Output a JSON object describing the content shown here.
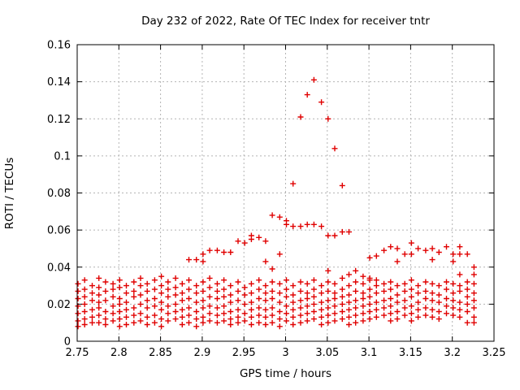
{
  "chart_data": {
    "type": "scatter",
    "title": "Day 232 of 2022, Rate Of TEC Index for receiver tntr",
    "xlabel": "GPS time / hours",
    "ylabel": "ROTI / TECUs",
    "xlim": [
      2.75,
      3.25
    ],
    "ylim": [
      0,
      0.16
    ],
    "xticks": [
      2.75,
      2.8,
      2.85,
      2.9,
      2.95,
      3,
      3.05,
      3.1,
      3.15,
      3.2,
      3.25
    ],
    "xtick_labels": [
      "2.75",
      "2.8",
      "2.85",
      "2.9",
      "2.95",
      "3",
      "3.05",
      "3.1",
      "3.15",
      "3.2",
      "3.25"
    ],
    "yticks": [
      0,
      0.02,
      0.04,
      0.06,
      0.08,
      0.1,
      0.12,
      0.14,
      0.16
    ],
    "ytick_labels": [
      "0",
      "0.02",
      "0.04",
      "0.06",
      "0.08",
      "0.1",
      "0.12",
      "0.14",
      "0.16"
    ],
    "grid": true,
    "legend": "none",
    "marker": "plus",
    "point_color": "#e00000",
    "grid_color": "#b4b4b4",
    "axis_color": "#000000",
    "series_by_epoch": [
      [
        2.751,
        [
          0.031,
          0.027,
          0.023,
          0.019,
          0.015,
          0.011,
          0.008
        ]
      ],
      [
        2.759,
        [
          0.033,
          0.028,
          0.024,
          0.02,
          0.016,
          0.012,
          0.009
        ]
      ],
      [
        2.768,
        [
          0.03,
          0.026,
          0.022,
          0.017,
          0.013,
          0.01
        ]
      ],
      [
        2.776,
        [
          0.034,
          0.029,
          0.025,
          0.021,
          0.018,
          0.014,
          0.01
        ]
      ],
      [
        2.784,
        [
          0.032,
          0.027,
          0.022,
          0.016,
          0.012,
          0.009
        ]
      ],
      [
        2.793,
        [
          0.031,
          0.028,
          0.024,
          0.019,
          0.015,
          0.011
        ]
      ],
      [
        2.801,
        [
          0.033,
          0.029,
          0.023,
          0.02,
          0.016,
          0.012,
          0.008
        ]
      ],
      [
        2.809,
        [
          0.03,
          0.026,
          0.021,
          0.017,
          0.013,
          0.009
        ]
      ],
      [
        2.818,
        [
          0.032,
          0.027,
          0.024,
          0.018,
          0.014,
          0.01
        ]
      ],
      [
        2.826,
        [
          0.034,
          0.03,
          0.025,
          0.02,
          0.015,
          0.011
        ]
      ],
      [
        2.834,
        [
          0.031,
          0.027,
          0.022,
          0.018,
          0.013,
          0.009
        ]
      ],
      [
        2.843,
        [
          0.033,
          0.028,
          0.023,
          0.019,
          0.014,
          0.01
        ]
      ],
      [
        2.851,
        [
          0.035,
          0.03,
          0.026,
          0.021,
          0.017,
          0.012,
          0.008
        ]
      ],
      [
        2.859,
        [
          0.032,
          0.028,
          0.024,
          0.019,
          0.015,
          0.011
        ]
      ],
      [
        2.868,
        [
          0.034,
          0.029,
          0.025,
          0.02,
          0.016,
          0.012
        ]
      ],
      [
        2.876,
        [
          0.031,
          0.026,
          0.022,
          0.017,
          0.013,
          0.009
        ]
      ],
      [
        2.884,
        [
          0.044,
          0.033,
          0.028,
          0.023,
          0.018,
          0.014,
          0.01
        ]
      ],
      [
        2.893,
        [
          0.044,
          0.03,
          0.026,
          0.021,
          0.016,
          0.012,
          0.008
        ]
      ],
      [
        2.901,
        [
          0.047,
          0.043,
          0.032,
          0.027,
          0.022,
          0.018,
          0.013,
          0.01
        ]
      ],
      [
        2.909,
        [
          0.049,
          0.034,
          0.029,
          0.024,
          0.019,
          0.015,
          0.011
        ]
      ],
      [
        2.918,
        [
          0.049,
          0.031,
          0.027,
          0.023,
          0.018,
          0.014,
          0.01
        ]
      ],
      [
        2.926,
        [
          0.048,
          0.033,
          0.028,
          0.024,
          0.019,
          0.015,
          0.011
        ]
      ],
      [
        2.934,
        [
          0.048,
          0.03,
          0.025,
          0.021,
          0.016,
          0.012,
          0.009
        ]
      ],
      [
        2.943,
        [
          0.054,
          0.032,
          0.027,
          0.022,
          0.017,
          0.013,
          0.01
        ]
      ],
      [
        2.951,
        [
          0.053,
          0.029,
          0.025,
          0.02,
          0.015,
          0.011
        ]
      ],
      [
        2.959,
        [
          0.057,
          0.055,
          0.031,
          0.026,
          0.021,
          0.017,
          0.013,
          0.009
        ]
      ],
      [
        2.968,
        [
          0.056,
          0.033,
          0.028,
          0.023,
          0.018,
          0.014,
          0.01
        ]
      ],
      [
        2.976,
        [
          0.054,
          0.043,
          0.03,
          0.026,
          0.022,
          0.017,
          0.013,
          0.009
        ]
      ],
      [
        2.984,
        [
          0.068,
          0.039,
          0.032,
          0.027,
          0.023,
          0.018,
          0.014,
          0.01
        ]
      ],
      [
        2.993,
        [
          0.067,
          0.047,
          0.031,
          0.026,
          0.021,
          0.016,
          0.012,
          0.008
        ]
      ],
      [
        3.001,
        [
          0.065,
          0.063,
          0.033,
          0.028,
          0.024,
          0.019,
          0.015,
          0.011
        ]
      ],
      [
        3.009,
        [
          0.085,
          0.062,
          0.03,
          0.025,
          0.021,
          0.017,
          0.013,
          0.009
        ]
      ],
      [
        3.018,
        [
          0.121,
          0.062,
          0.032,
          0.027,
          0.022,
          0.018,
          0.014,
          0.01
        ]
      ],
      [
        3.026,
        [
          0.133,
          0.063,
          0.031,
          0.026,
          0.023,
          0.019,
          0.015,
          0.011
        ]
      ],
      [
        3.034,
        [
          0.141,
          0.063,
          0.033,
          0.028,
          0.024,
          0.02,
          0.016,
          0.012
        ]
      ],
      [
        3.043,
        [
          0.129,
          0.062,
          0.03,
          0.026,
          0.021,
          0.017,
          0.013,
          0.009
        ]
      ],
      [
        3.051,
        [
          0.12,
          0.057,
          0.038,
          0.032,
          0.027,
          0.022,
          0.018,
          0.014,
          0.01
        ]
      ],
      [
        3.059,
        [
          0.104,
          0.057,
          0.031,
          0.026,
          0.023,
          0.019,
          0.015,
          0.011
        ]
      ],
      [
        3.068,
        [
          0.084,
          0.059,
          0.034,
          0.028,
          0.024,
          0.02,
          0.016,
          0.012
        ]
      ],
      [
        3.076,
        [
          0.059,
          0.036,
          0.03,
          0.025,
          0.021,
          0.017,
          0.013,
          0.009
        ]
      ],
      [
        3.084,
        [
          0.038,
          0.032,
          0.027,
          0.022,
          0.018,
          0.014,
          0.01
        ]
      ],
      [
        3.093,
        [
          0.035,
          0.031,
          0.026,
          0.023,
          0.019,
          0.015,
          0.011
        ]
      ],
      [
        3.101,
        [
          0.045,
          0.034,
          0.033,
          0.028,
          0.024,
          0.02,
          0.016,
          0.012
        ]
      ],
      [
        3.109,
        [
          0.046,
          0.033,
          0.03,
          0.026,
          0.021,
          0.017,
          0.013
        ]
      ],
      [
        3.118,
        [
          0.049,
          0.031,
          0.027,
          0.022,
          0.018,
          0.014
        ]
      ],
      [
        3.126,
        [
          0.051,
          0.032,
          0.028,
          0.023,
          0.019,
          0.015,
          0.011
        ]
      ],
      [
        3.134,
        [
          0.05,
          0.043,
          0.03,
          0.025,
          0.021,
          0.016,
          0.012
        ]
      ],
      [
        3.143,
        [
          0.047,
          0.031,
          0.027,
          0.022,
          0.018,
          0.014
        ]
      ],
      [
        3.151,
        [
          0.053,
          0.047,
          0.033,
          0.028,
          0.024,
          0.019,
          0.015,
          0.011
        ]
      ],
      [
        3.159,
        [
          0.05,
          0.03,
          0.026,
          0.021,
          0.017,
          0.013
        ]
      ],
      [
        3.168,
        [
          0.049,
          0.032,
          0.027,
          0.023,
          0.018,
          0.014
        ]
      ],
      [
        3.176,
        [
          0.05,
          0.044,
          0.031,
          0.026,
          0.022,
          0.017,
          0.013
        ]
      ],
      [
        3.184,
        [
          0.048,
          0.03,
          0.025,
          0.021,
          0.016,
          0.012
        ]
      ],
      [
        3.193,
        [
          0.051,
          0.032,
          0.028,
          0.023,
          0.019,
          0.015
        ]
      ],
      [
        3.201,
        [
          0.047,
          0.043,
          0.031,
          0.026,
          0.022,
          0.018,
          0.014
        ]
      ],
      [
        3.209,
        [
          0.051,
          0.047,
          0.036,
          0.03,
          0.027,
          0.021,
          0.017,
          0.013
        ]
      ],
      [
        3.218,
        [
          0.047,
          0.032,
          0.028,
          0.024,
          0.02,
          0.016,
          0.01
        ]
      ],
      [
        3.226,
        [
          0.04,
          0.036,
          0.031,
          0.026,
          0.022,
          0.018,
          0.013,
          0.01
        ]
      ]
    ]
  }
}
